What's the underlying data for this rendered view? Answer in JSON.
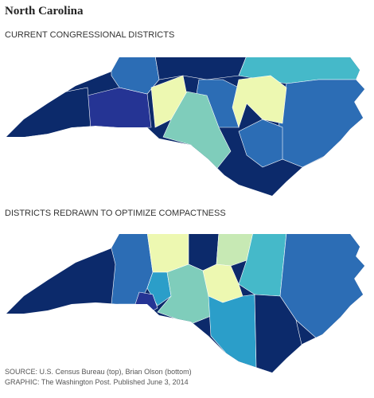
{
  "header": {
    "title": "North Carolina"
  },
  "maps": [
    {
      "label": "CURRENT CONGRESSIONAL DISTRICTS"
    },
    {
      "label": "DISTRICTS REDRAWN TO OPTIMIZE COMPACTNESS"
    }
  ],
  "footer": {
    "source": "SOURCE: U.S. Census Bureau (top), Brian Olson (bottom)",
    "graphic": "GRAPHIC: The Washington Post. Published June 3, 2014"
  }
}
